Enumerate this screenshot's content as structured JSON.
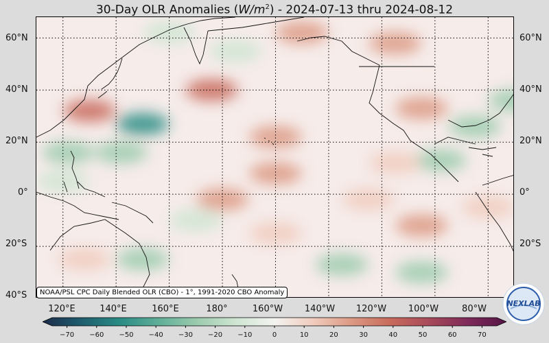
{
  "title": {
    "prefix": "30-Day OLR Anomalies (",
    "unit_base": "W/m",
    "unit_exp": "2",
    "suffix": ") - 2024-07-13 thru 2024-08-12"
  },
  "lat_labels": [
    "60°N",
    "40°N",
    "20°N",
    "0°",
    "20°S",
    "40°S"
  ],
  "lon_labels": [
    "120°E",
    "140°E",
    "160°E",
    "180°",
    "160°W",
    "140°W",
    "120°W",
    "100°W",
    "80°W"
  ],
  "source_text": "NOAA/PSL CPC Daily Blended OLR (CBO) - 1°, 1991-2020 CBO Anomaly",
  "colorbar": {
    "ticks": [
      "−70",
      "−60",
      "−50",
      "−40",
      "−30",
      "−20",
      "−10",
      "0",
      "10",
      "20",
      "30",
      "40",
      "50",
      "60",
      "70"
    ],
    "min": -75,
    "max": 75,
    "colors": [
      "#1c2b4a",
      "#1f5d6e",
      "#2a8c84",
      "#5fae98",
      "#9ccbae",
      "#cfe5d2",
      "#f3f3f0",
      "#f0cbbd",
      "#dc9983",
      "#c86a5c",
      "#a84a5a",
      "#7e2a5a",
      "#551746"
    ]
  },
  "logo_text": "NEXLAB",
  "map": {
    "lon_range": [
      110,
      290
    ],
    "lat_range": [
      -40,
      68
    ],
    "land_color": "#fbf0ec",
    "anomaly_regions": [
      {
        "lon": 130,
        "lat": 32,
        "value": 35
      },
      {
        "lon": 150,
        "lat": 27,
        "value": -45
      },
      {
        "lon": 142,
        "lat": 16,
        "value": -30
      },
      {
        "lon": 176,
        "lat": 40,
        "value": 35
      },
      {
        "lon": 200,
        "lat": 22,
        "value": 25
      },
      {
        "lon": 255,
        "lat": 33,
        "value": 30
      },
      {
        "lon": 290,
        "lat": 36,
        "value": -30
      },
      {
        "lon": 275,
        "lat": 26,
        "value": -20
      },
      {
        "lon": 262,
        "lat": 13,
        "value": -25
      },
      {
        "lon": 245,
        "lat": 12,
        "value": 15
      },
      {
        "lon": 120,
        "lat": 5,
        "value": -15
      },
      {
        "lon": 122,
        "lat": 16,
        "value": -20
      },
      {
        "lon": 180,
        "lat": -2,
        "value": 20
      },
      {
        "lon": 200,
        "lat": 8,
        "value": 20
      },
      {
        "lon": 235,
        "lat": -2,
        "value": 15
      },
      {
        "lon": 150,
        "lat": -25,
        "value": -20
      },
      {
        "lon": 225,
        "lat": -27,
        "value": -30
      },
      {
        "lon": 255,
        "lat": -30,
        "value": -20
      },
      {
        "lon": 200,
        "lat": -15,
        "value": 15
      },
      {
        "lon": 210,
        "lat": 62,
        "value": 25
      },
      {
        "lon": 245,
        "lat": 58,
        "value": 25
      },
      {
        "lon": 160,
        "lat": 62,
        "value": -15
      },
      {
        "lon": 185,
        "lat": 55,
        "value": -15
      },
      {
        "lon": 128,
        "lat": -25,
        "value": 10
      },
      {
        "lon": 255,
        "lat": -12,
        "value": 20
      },
      {
        "lon": 170,
        "lat": -10,
        "value": -15
      },
      {
        "lon": 280,
        "lat": -5,
        "value": 15
      }
    ]
  }
}
